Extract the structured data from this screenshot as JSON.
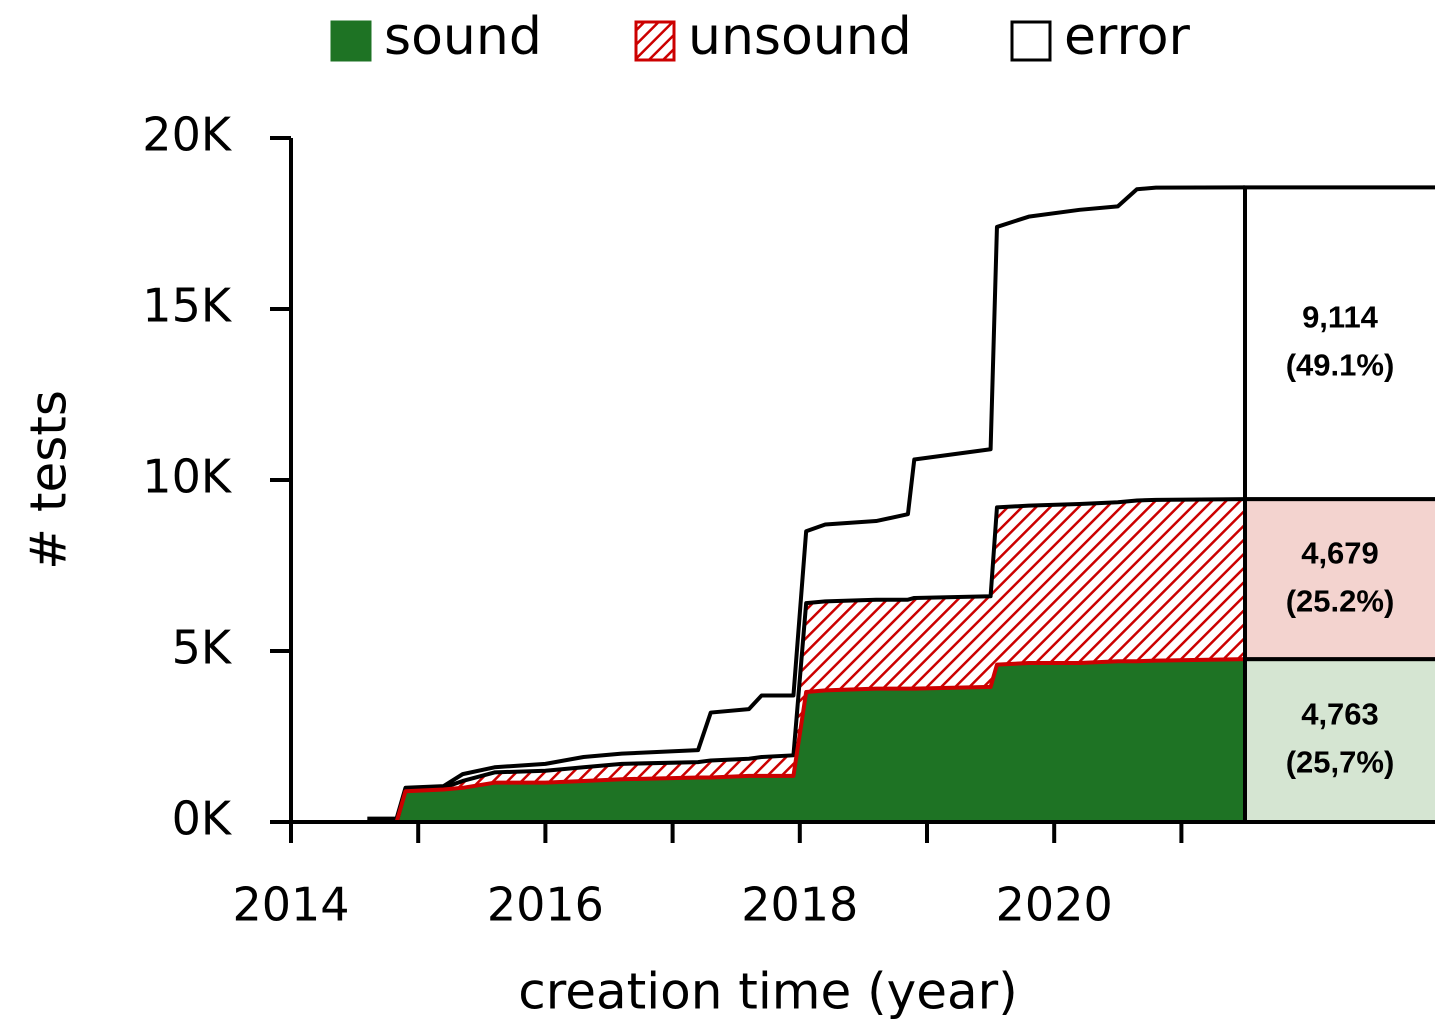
{
  "chart_data": {
    "type": "stacked_area",
    "xlabel": "creation time (year)",
    "ylabel": "# tests",
    "x": [
      2014.6,
      2014.83,
      2014.9,
      2015.2,
      2015.35,
      2015.6,
      2016.0,
      2016.3,
      2016.6,
      2017.2,
      2017.3,
      2017.6,
      2017.7,
      2017.95,
      2018.05,
      2018.2,
      2018.6,
      2018.85,
      2018.9,
      2019.5,
      2019.55,
      2019.8,
      2020.2,
      2020.5,
      2020.65,
      2020.8,
      2021.5
    ],
    "series": [
      {
        "name": "sound",
        "color": "#1e7324",
        "line_color": "#cc0000",
        "values": [
          0,
          0,
          900,
          950,
          1000,
          1150,
          1150,
          1200,
          1250,
          1300,
          1300,
          1350,
          1350,
          1350,
          3800,
          3850,
          3900,
          3900,
          3900,
          3950,
          4600,
          4650,
          4650,
          4700,
          4700,
          4720,
          4763
        ]
      },
      {
        "name": "unsound",
        "color": "#cc0000",
        "line_color": "#000000",
        "values": [
          0,
          0,
          50,
          50,
          200,
          300,
          350,
          400,
          450,
          450,
          500,
          500,
          550,
          600,
          2600,
          2600,
          2600,
          2600,
          2650,
          2650,
          4600,
          4600,
          4650,
          4650,
          4700,
          4700,
          4679
        ]
      },
      {
        "name": "error",
        "color": "#ffffff",
        "line_color": "#000000",
        "values": [
          100,
          100,
          50,
          50,
          200,
          150,
          200,
          300,
          300,
          350,
          1400,
          1450,
          1800,
          1750,
          2100,
          2250,
          2300,
          2500,
          4050,
          4300,
          8200,
          8450,
          8600,
          8650,
          9100,
          9130,
          9114
        ]
      }
    ],
    "totals": {
      "values": [
        4763,
        4679,
        9114
      ],
      "value_labels": [
        "4,763",
        "4,679",
        "9,114"
      ],
      "percent_labels": [
        "(25,7%)",
        "(25.2%)",
        "(49.1%)"
      ],
      "colors": [
        "#d5e5d2",
        "#f3d3cf",
        "#ffffff"
      ]
    },
    "xlim": [
      2014,
      2021.5
    ],
    "xticks": [
      2014,
      2016,
      2018,
      2020
    ],
    "xminor_ticks": [
      2015,
      2017,
      2019,
      2021
    ],
    "ylim": [
      0,
      20000
    ],
    "yticks": [
      {
        "value": 0,
        "label": "0K"
      },
      {
        "value": 5000,
        "label": "5K"
      },
      {
        "value": 10000,
        "label": "10K"
      },
      {
        "value": 15000,
        "label": "15K"
      },
      {
        "value": 20000,
        "label": "20K"
      }
    ],
    "legend": "top"
  }
}
